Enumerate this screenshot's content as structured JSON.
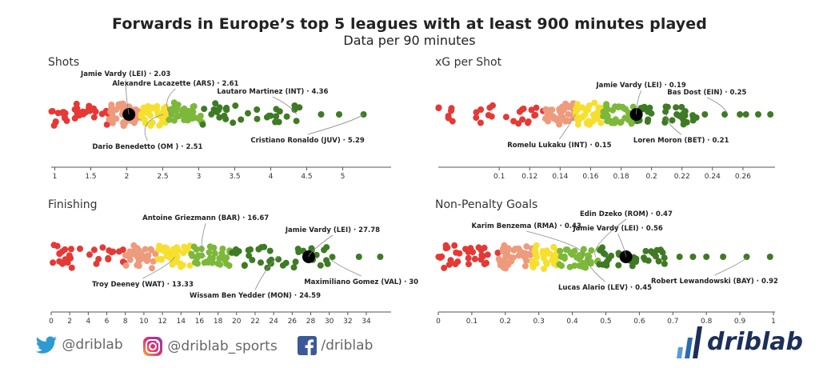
{
  "title": "Forwards in Europe’s top 5 leagues with at least 900 minutes played",
  "subtitle": "Data per 90 minutes",
  "colors": {
    "red": "#e53935",
    "salmon": "#ee9a7c",
    "yellow": "#f7df2f",
    "lightgreen": "#7cb83a",
    "darkgreen": "#3f7a25",
    "highlight": "#000000"
  },
  "chart_data": [
    {
      "type": "scatter",
      "title": "Shots",
      "xlim": [
        0.95,
        5.65
      ],
      "ticks": [
        1,
        1.5,
        2,
        2.5,
        3,
        3.5,
        4,
        4.5,
        5
      ],
      "tick_labels": [
        "1",
        "1.5",
        "2",
        "2.5",
        "3",
        "3.5",
        "4",
        "4.5",
        "5"
      ],
      "bins": [
        {
          "color": "red",
          "lo": 0.95,
          "hi": 1.75,
          "n": 32
        },
        {
          "color": "salmon",
          "lo": 1.75,
          "hi": 2.2,
          "n": 40
        },
        {
          "color": "yellow",
          "lo": 2.2,
          "hi": 2.58,
          "n": 40
        },
        {
          "color": "lightgreen",
          "lo": 2.58,
          "hi": 3.05,
          "n": 36
        },
        {
          "color": "darkgreen",
          "lo": 3.05,
          "hi": 4.4,
          "n": 34
        }
      ],
      "outliers": [
        4.7,
        4.95,
        5.29
      ],
      "highlight": {
        "label": "Jamie Vardy (LEI) · 2.03",
        "value": 2.03
      },
      "annotations": [
        {
          "label": "Jamie Vardy (LEI) · 2.03",
          "value": 2.03
        },
        {
          "label": "Alexandre Lacazette (ARS) · 2.61",
          "value": 2.61
        },
        {
          "label": "Lautaro Martinez (INT) · 4.36",
          "value": 4.36
        },
        {
          "label": "Dario Benedetto (OM ) · 2.51",
          "value": 2.51
        },
        {
          "label": "Cristiano Ronaldo (JUV) · 5.29",
          "value": 5.29
        }
      ]
    },
    {
      "type": "scatter",
      "title": "xG per Shot",
      "xlim": [
        0.06,
        0.28
      ],
      "ticks": [
        0.1,
        0.12,
        0.14,
        0.16,
        0.18,
        0.2,
        0.22,
        0.24,
        0.26
      ],
      "tick_labels": [
        "0.1",
        "0.12",
        "0.14",
        "0.16",
        "0.18",
        "0.2",
        "0.22",
        "0.24",
        "0.26"
      ],
      "bins": [
        {
          "color": "red",
          "lo": 0.06,
          "hi": 0.13,
          "n": 30
        },
        {
          "color": "salmon",
          "lo": 0.13,
          "hi": 0.15,
          "n": 40
        },
        {
          "color": "yellow",
          "lo": 0.15,
          "hi": 0.168,
          "n": 38
        },
        {
          "color": "lightgreen",
          "lo": 0.168,
          "hi": 0.19,
          "n": 36
        },
        {
          "color": "darkgreen",
          "lo": 0.19,
          "hi": 0.23,
          "n": 34
        }
      ],
      "outliers": [
        0.235,
        0.248,
        0.258,
        0.262,
        0.27,
        0.278
      ],
      "highlight": {
        "label": "Jamie Vardy (LEI) · 0.19",
        "value": 0.19
      },
      "annotations": [
        {
          "label": "Jamie Vardy (LEI) · 0.19",
          "value": 0.19
        },
        {
          "label": "Bas Dost (EIN) · 0.25",
          "value": 0.25
        },
        {
          "label": "Romelu Lukaku (INT) · 0.15",
          "value": 0.15
        },
        {
          "label": "Loren Moron (BET) · 0.21",
          "value": 0.21
        }
      ]
    },
    {
      "type": "scatter",
      "title": "Finishing",
      "xlim": [
        0,
        36.5
      ],
      "ticks": [
        0,
        2,
        4,
        6,
        8,
        10,
        12,
        14,
        16,
        18,
        20,
        22,
        24,
        26,
        28,
        30,
        32,
        34
      ],
      "tick_labels": [
        "0",
        "2",
        "4",
        "6",
        "8",
        "10",
        "12",
        "14",
        "16",
        "18",
        "20",
        "22",
        "24",
        "26",
        "28",
        "30",
        "32",
        "34"
      ],
      "bins": [
        {
          "color": "red",
          "lo": 0,
          "hi": 8,
          "n": 30
        },
        {
          "color": "salmon",
          "lo": 8,
          "hi": 11.5,
          "n": 36
        },
        {
          "color": "yellow",
          "lo": 11.5,
          "hi": 15,
          "n": 40
        },
        {
          "color": "lightgreen",
          "lo": 15,
          "hi": 19.5,
          "n": 38
        },
        {
          "color": "darkgreen",
          "lo": 19.5,
          "hi": 30.5,
          "n": 38
        }
      ],
      "outliers": [
        33.2,
        35.5
      ],
      "highlight": {
        "label": "Jamie Vardy (LEI) · 27.78",
        "value": 27.78
      },
      "annotations": [
        {
          "label": "Antoine Griezmann (BAR) · 16.67",
          "value": 16.67
        },
        {
          "label": "Jamie Vardy (LEI) · 27.78",
          "value": 27.78
        },
        {
          "label": "Troy Deeney (WAT) · 13.33",
          "value": 13.33
        },
        {
          "label": "Maximiliano Gomez (VAL) · 30",
          "value": 30
        },
        {
          "label": "Wissam Ben Yedder (MON) · 24.59",
          "value": 24.59
        }
      ]
    },
    {
      "type": "scatter",
      "title": "Non-Penalty Goals",
      "xlim": [
        0,
        1.0
      ],
      "ticks": [
        0,
        0.1,
        0.2,
        0.3,
        0.4,
        0.5,
        0.6,
        0.7,
        0.8,
        0.9,
        1
      ],
      "tick_labels": [
        "0",
        "0.1",
        "0.2",
        "0.3",
        "0.4",
        "0.5",
        "0.6",
        "0.7",
        "0.8",
        "0.9",
        "1"
      ],
      "bins": [
        {
          "color": "red",
          "lo": 0.0,
          "hi": 0.18,
          "n": 32
        },
        {
          "color": "salmon",
          "lo": 0.18,
          "hi": 0.28,
          "n": 40
        },
        {
          "color": "yellow",
          "lo": 0.28,
          "hi": 0.36,
          "n": 38
        },
        {
          "color": "lightgreen",
          "lo": 0.36,
          "hi": 0.48,
          "n": 36
        },
        {
          "color": "darkgreen",
          "lo": 0.48,
          "hi": 0.68,
          "n": 34
        }
      ],
      "outliers": [
        0.72,
        0.76,
        0.8,
        0.85,
        0.92,
        0.99
      ],
      "highlight": {
        "label": "Jamie Vardy (LEI) · 0.56",
        "value": 0.56
      },
      "annotations": [
        {
          "label": "Edin Dzeko (ROM) · 0.47",
          "value": 0.47
        },
        {
          "label": "Karim Benzema (RMA) · 0.43",
          "value": 0.43
        },
        {
          "label": "Jamie Vardy (LEI) · 0.56",
          "value": 0.56
        },
        {
          "label": "Lucas Alario (LEV) · 0.45",
          "value": 0.45
        },
        {
          "label": "Robert Lewandowski (BAY) · 0.92",
          "value": 0.92
        }
      ]
    }
  ],
  "footer": {
    "twitter": "@driblab",
    "instagram": "@driblab_sports",
    "facebook": "/driblab",
    "brand": "driblab"
  }
}
